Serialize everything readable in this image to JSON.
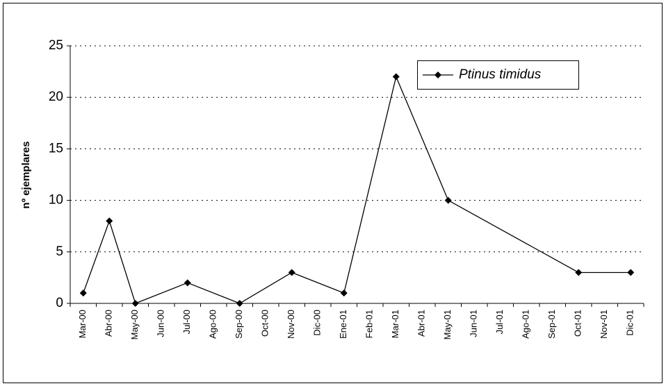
{
  "chart_data": {
    "type": "line",
    "ylabel": "nº ejemplares",
    "categories": [
      "Mar-00",
      "Abr-00",
      "May-00",
      "Jun-00",
      "Jul-00",
      "Ago-00",
      "Sep-00",
      "Oct-00",
      "Nov-00",
      "Dic-00",
      "Ene-01",
      "Feb-01",
      "Mar-01",
      "Abr-01",
      "May-01",
      "Jun-01",
      "Jul-01",
      "Ago-01",
      "Sep-01",
      "Oct-01",
      "Nov-01",
      "Dic-01"
    ],
    "series": [
      {
        "name": "Ptinus timidus",
        "color": "#000000",
        "x": [
          "Mar-00",
          "Abr-00",
          "May-00",
          "Jul-00",
          "Sep-00",
          "Nov-00",
          "Ene-01",
          "Mar-01",
          "May-01",
          "Oct-01",
          "Dic-01"
        ],
        "values": [
          1,
          8,
          0,
          2,
          0,
          3,
          1,
          22,
          10,
          3,
          3
        ]
      }
    ],
    "ylim": [
      0,
      25
    ],
    "yticks": [
      0,
      5,
      10,
      15,
      20,
      25
    ],
    "grid": true,
    "legend": "top-right"
  }
}
